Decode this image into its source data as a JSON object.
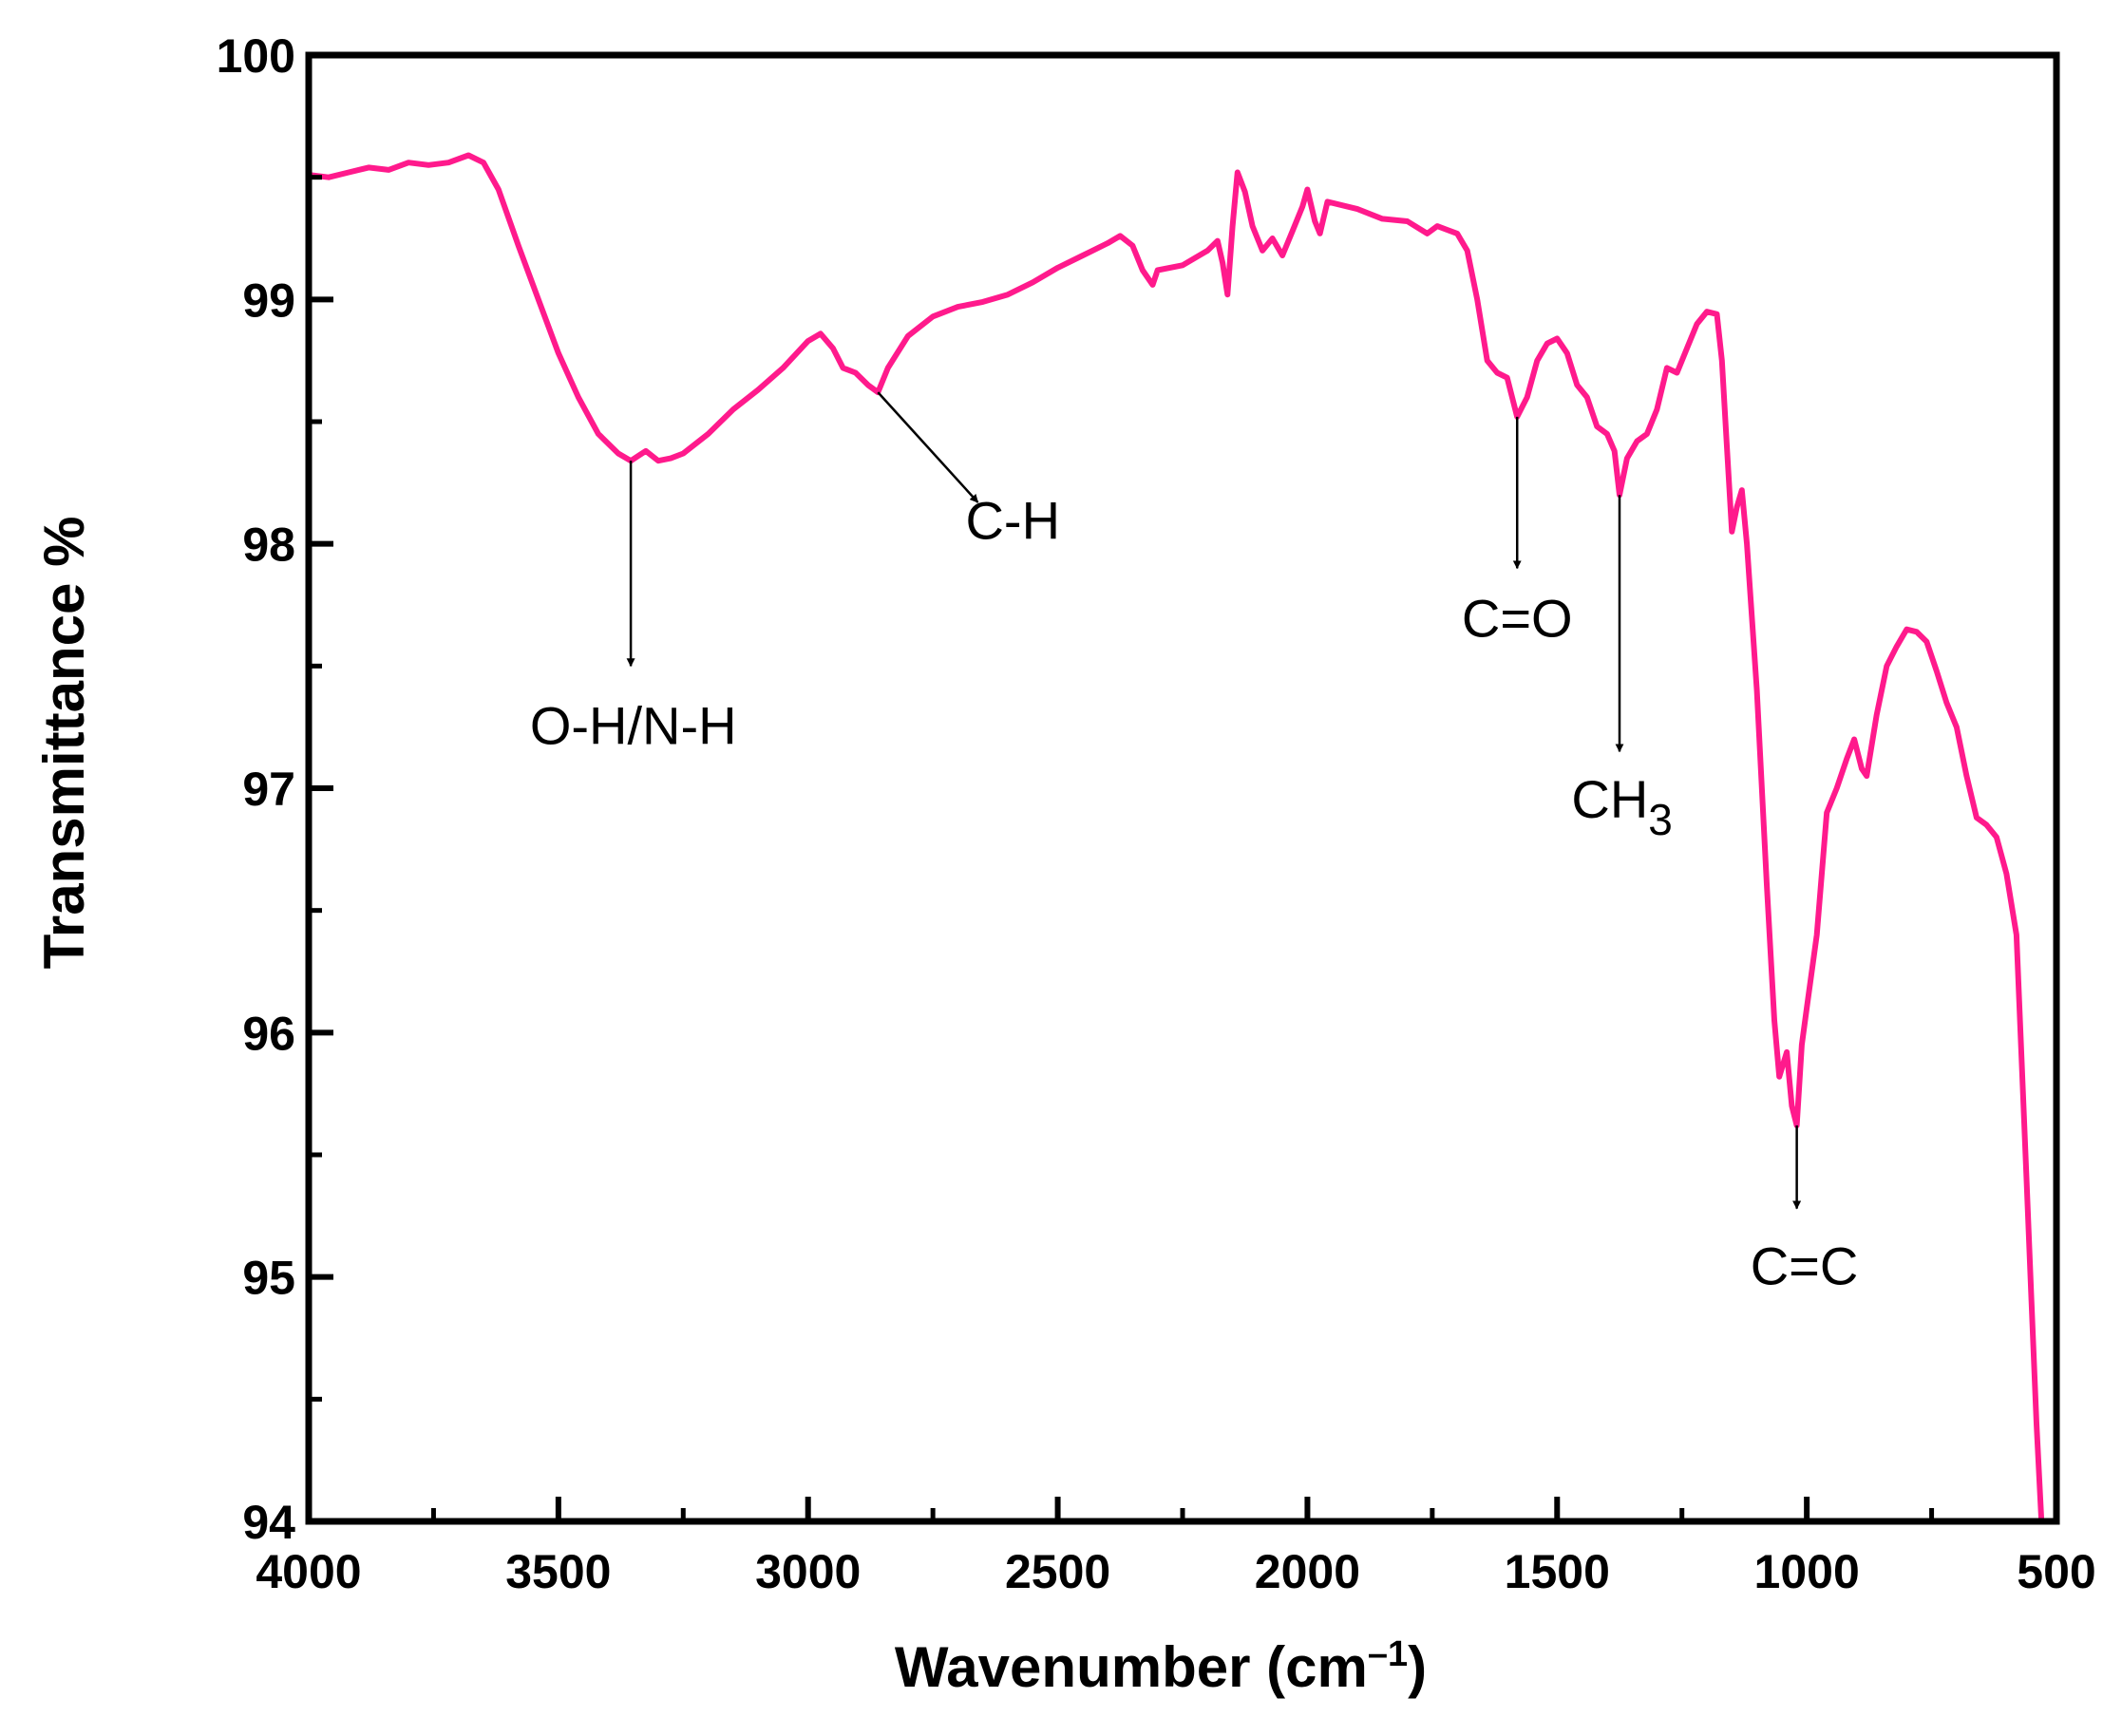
{
  "chart_data": {
    "type": "line",
    "title": "",
    "xlabel_main": "Wavenumber (cm",
    "xlabel_superscript": "–1",
    "xlabel_close": ")",
    "ylabel": "Transmittance %",
    "xlim": [
      4000,
      500
    ],
    "ylim": [
      94,
      100
    ],
    "x_reversed": true,
    "grid": false,
    "legend": "none",
    "x_ticks": [
      4000,
      3500,
      3000,
      2500,
      2000,
      1500,
      1000,
      500
    ],
    "y_ticks": [
      94,
      95,
      96,
      97,
      98,
      99,
      100
    ],
    "x_tick_labels": [
      "4000",
      "3500",
      "3000",
      "2500",
      "2000",
      "1500",
      "1000",
      "500"
    ],
    "y_tick_labels": [
      "94",
      "95",
      "96",
      "97",
      "98",
      "99",
      "100"
    ],
    "line_color": "#ff1a8c",
    "series": [
      {
        "name": "",
        "color": "#ff1a8c",
        "points": [
          [
            4000,
            99.51
          ],
          [
            3960,
            99.5
          ],
          [
            3920,
            99.52
          ],
          [
            3880,
            99.54
          ],
          [
            3840,
            99.53
          ],
          [
            3800,
            99.56
          ],
          [
            3760,
            99.55
          ],
          [
            3720,
            99.56
          ],
          [
            3680,
            99.59
          ],
          [
            3650,
            99.56
          ],
          [
            3620,
            99.45
          ],
          [
            3580,
            99.22
          ],
          [
            3540,
            99.0
          ],
          [
            3500,
            98.78
          ],
          [
            3460,
            98.6
          ],
          [
            3420,
            98.45
          ],
          [
            3380,
            98.37
          ],
          [
            3355,
            98.34
          ],
          [
            3340,
            98.36
          ],
          [
            3325,
            98.38
          ],
          [
            3300,
            98.34
          ],
          [
            3275,
            98.35
          ],
          [
            3250,
            98.37
          ],
          [
            3200,
            98.45
          ],
          [
            3150,
            98.55
          ],
          [
            3100,
            98.63
          ],
          [
            3050,
            98.72
          ],
          [
            3000,
            98.83
          ],
          [
            2975,
            98.86
          ],
          [
            2950,
            98.8
          ],
          [
            2930,
            98.72
          ],
          [
            2905,
            98.7
          ],
          [
            2880,
            98.65
          ],
          [
            2860,
            98.62
          ],
          [
            2840,
            98.72
          ],
          [
            2800,
            98.85
          ],
          [
            2750,
            98.93
          ],
          [
            2700,
            98.97
          ],
          [
            2650,
            98.99
          ],
          [
            2600,
            99.02
          ],
          [
            2550,
            99.07
          ],
          [
            2500,
            99.13
          ],
          [
            2450,
            99.18
          ],
          [
            2400,
            99.23
          ],
          [
            2375,
            99.26
          ],
          [
            2350,
            99.22
          ],
          [
            2330,
            99.12
          ],
          [
            2310,
            99.06
          ],
          [
            2300,
            99.12
          ],
          [
            2250,
            99.14
          ],
          [
            2200,
            99.2
          ],
          [
            2180,
            99.24
          ],
          [
            2170,
            99.15
          ],
          [
            2160,
            99.02
          ],
          [
            2150,
            99.3
          ],
          [
            2140,
            99.52
          ],
          [
            2125,
            99.44
          ],
          [
            2110,
            99.3
          ],
          [
            2090,
            99.2
          ],
          [
            2070,
            99.25
          ],
          [
            2050,
            99.18
          ],
          [
            2030,
            99.28
          ],
          [
            2010,
            99.38
          ],
          [
            2000,
            99.45
          ],
          [
            1985,
            99.32
          ],
          [
            1975,
            99.27
          ],
          [
            1960,
            99.4
          ],
          [
            1900,
            99.37
          ],
          [
            1850,
            99.33
          ],
          [
            1800,
            99.32
          ],
          [
            1760,
            99.27
          ],
          [
            1740,
            99.3
          ],
          [
            1700,
            99.27
          ],
          [
            1680,
            99.2
          ],
          [
            1660,
            99.0
          ],
          [
            1640,
            98.75
          ],
          [
            1620,
            98.7
          ],
          [
            1600,
            98.68
          ],
          [
            1580,
            98.52
          ],
          [
            1560,
            98.6
          ],
          [
            1540,
            98.75
          ],
          [
            1520,
            98.82
          ],
          [
            1500,
            98.84
          ],
          [
            1480,
            98.78
          ],
          [
            1460,
            98.65
          ],
          [
            1440,
            98.6
          ],
          [
            1420,
            98.48
          ],
          [
            1400,
            98.45
          ],
          [
            1385,
            98.38
          ],
          [
            1375,
            98.2
          ],
          [
            1360,
            98.35
          ],
          [
            1340,
            98.42
          ],
          [
            1320,
            98.45
          ],
          [
            1300,
            98.55
          ],
          [
            1280,
            98.72
          ],
          [
            1260,
            98.7
          ],
          [
            1240,
            98.8
          ],
          [
            1220,
            98.9
          ],
          [
            1200,
            98.95
          ],
          [
            1180,
            98.94
          ],
          [
            1170,
            98.75
          ],
          [
            1160,
            98.4
          ],
          [
            1150,
            98.05
          ],
          [
            1140,
            98.15
          ],
          [
            1130,
            98.22
          ],
          [
            1120,
            98.0
          ],
          [
            1100,
            97.4
          ],
          [
            1080,
            96.6
          ],
          [
            1065,
            96.05
          ],
          [
            1055,
            95.82
          ],
          [
            1040,
            95.92
          ],
          [
            1030,
            95.7
          ],
          [
            1020,
            95.62
          ],
          [
            1010,
            95.95
          ],
          [
            1000,
            96.1
          ],
          [
            980,
            96.4
          ],
          [
            960,
            96.9
          ],
          [
            940,
            97.0
          ],
          [
            920,
            97.12
          ],
          [
            905,
            97.2
          ],
          [
            890,
            97.08
          ],
          [
            880,
            97.05
          ],
          [
            860,
            97.3
          ],
          [
            840,
            97.5
          ],
          [
            820,
            97.58
          ],
          [
            800,
            97.65
          ],
          [
            780,
            97.64
          ],
          [
            760,
            97.6
          ],
          [
            740,
            97.48
          ],
          [
            720,
            97.35
          ],
          [
            700,
            97.25
          ],
          [
            680,
            97.05
          ],
          [
            660,
            96.88
          ],
          [
            640,
            96.85
          ],
          [
            620,
            96.8
          ],
          [
            600,
            96.65
          ],
          [
            580,
            96.4
          ],
          [
            570,
            95.9
          ],
          [
            560,
            95.4
          ],
          [
            550,
            94.9
          ],
          [
            540,
            94.4
          ],
          [
            530,
            94.0
          ]
        ]
      }
    ],
    "annotations": [
      {
        "id": "oh-nh",
        "text": "O-H/N-H",
        "sub": "",
        "peak_x": 3355,
        "peak_y": 98.34,
        "label_x": 3350,
        "label_y": 97.18,
        "arrow_end_x": 3355,
        "arrow_end_y": 97.5
      },
      {
        "id": "ch",
        "text": "C-H",
        "sub": "",
        "peak_x": 2860,
        "peak_y": 98.62,
        "label_x": 2590,
        "label_y": 98.02,
        "arrow_end_x": 2660,
        "arrow_end_y": 98.17
      },
      {
        "id": "co",
        "text": "C=O",
        "sub": "",
        "peak_x": 1580,
        "peak_y": 98.52,
        "label_x": 1580,
        "label_y": 97.62,
        "arrow_end_x": 1580,
        "arrow_end_y": 97.9
      },
      {
        "id": "ch3",
        "text": "CH",
        "sub": "3",
        "peak_x": 1375,
        "peak_y": 98.2,
        "label_x": 1370,
        "label_y": 96.88,
        "arrow_end_x": 1375,
        "arrow_end_y": 97.15
      },
      {
        "id": "cc",
        "text": "C=C",
        "sub": "",
        "peak_x": 1020,
        "peak_y": 95.62,
        "label_x": 1005,
        "label_y": 94.97,
        "arrow_end_x": 1020,
        "arrow_end_y": 95.28
      }
    ]
  }
}
